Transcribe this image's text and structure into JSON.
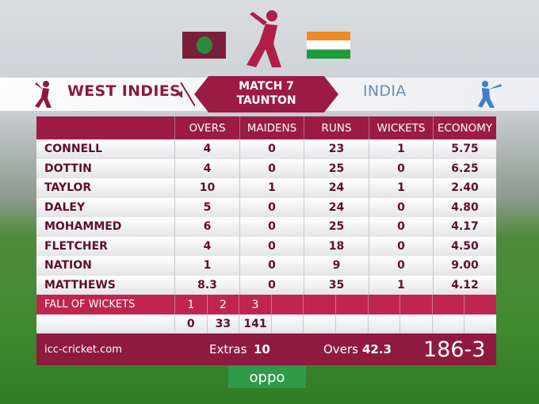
{
  "header": {
    "team1": "WEST INDIES",
    "match": "MATCH 7",
    "venue": "TAUNTON",
    "team2": "INDIA"
  },
  "table": {
    "columns": [
      "OVERS",
      "MAIDENS",
      "RUNS",
      "WICKETS",
      "ECONOMY"
    ],
    "rows": [
      [
        "CONNELL",
        "4",
        "0",
        "23",
        "1",
        "5.75"
      ],
      [
        "DOTTIN",
        "4",
        "0",
        "25",
        "0",
        "6.25"
      ],
      [
        "TAYLOR",
        "10",
        "1",
        "24",
        "1",
        "2.40"
      ],
      [
        "DALEY",
        "5",
        "0",
        "24",
        "0",
        "4.80"
      ],
      [
        "MOHAMMED",
        "6",
        "0",
        "25",
        "0",
        "4.17"
      ],
      [
        "FLETCHER",
        "4",
        "0",
        "18",
        "0",
        "4.50"
      ],
      [
        "NATION",
        "1",
        "0",
        "9",
        "0",
        "9.00"
      ],
      [
        "MATTHEWS",
        "8.3",
        "0",
        "35",
        "1",
        "4.12"
      ]
    ]
  },
  "fall_of_wickets": {
    "label": "FALL OF WICKETS",
    "wickets": [
      "1",
      "2",
      "3"
    ],
    "scores": [
      "0",
      "33",
      "141"
    ]
  },
  "footer": {
    "site": "icc-cricket.com",
    "extras_label": "Extras",
    "extras": "10",
    "overs_label": "Overs",
    "overs": "42.3",
    "score": "186-3"
  }
}
